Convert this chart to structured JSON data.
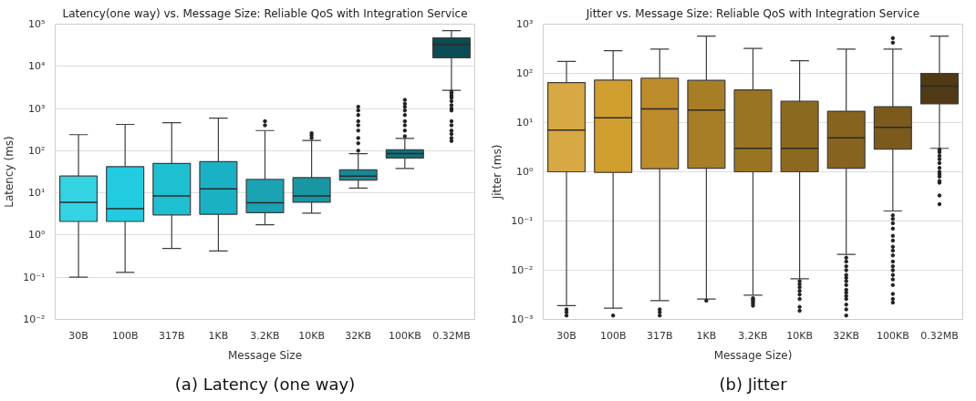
{
  "chart_data": [
    {
      "type": "box",
      "title": "Latency(one way) vs. Message Size: Reliable QoS with Integration Service",
      "xlabel": "Message Size",
      "ylabel": "Latency (ms)",
      "categories": [
        "30B",
        "100B",
        "317B",
        "1KB",
        "3.2KB",
        "10KB",
        "32KB",
        "100KB",
        "0.32MB"
      ],
      "colors": [
        "#33d3e3",
        "#22cbdf",
        "#1dbfd0",
        "#1bb1c4",
        "#1ba2b3",
        "#1897a3",
        "#158a97",
        "#107178",
        "#0c4c55"
      ],
      "boxes": [
        {
          "low": 0.1,
          "q1": 2.1,
          "median": 6,
          "q3": 25,
          "high": 240
        },
        {
          "low": 0.13,
          "q1": 2.1,
          "median": 4.2,
          "q3": 42,
          "high": 420
        },
        {
          "low": 0.48,
          "q1": 3.0,
          "median": 8.5,
          "q3": 50,
          "high": 460
        },
        {
          "low": 0.42,
          "q1": 3.1,
          "median": 12.5,
          "q3": 55,
          "high": 590
        },
        {
          "low": 1.75,
          "q1": 3.4,
          "median": 5.8,
          "q3": 21,
          "high": 300,
          "outliers": [
            400,
            500
          ]
        },
        {
          "low": 3.3,
          "q1": 6.0,
          "median": 8.5,
          "q3": 23,
          "high": 175,
          "outliers": [
            200,
            230,
            260
          ]
        },
        {
          "low": 13,
          "q1": 20,
          "median": 25,
          "q3": 35,
          "high": 85,
          "outliers": [
            100,
            150,
            200,
            300,
            400,
            500,
            700,
            900,
            1100
          ]
        },
        {
          "low": 38,
          "q1": 67,
          "median": 85,
          "q3": 105,
          "high": 195,
          "outliers": [
            220,
            300,
            400,
            500,
            700,
            900,
            1100,
            1300,
            1600
          ]
        },
        {
          "low": 2700,
          "q1": 16000,
          "median": 33000,
          "q3": 47000,
          "high": 70000,
          "outliers": [
            170,
            200,
            250,
            300,
            400,
            500,
            900,
            1000,
            1200,
            1500,
            1800,
            2000,
            2300,
            2500
          ]
        }
      ],
      "log": "y",
      "grid": "y",
      "ylim": [
        0.01,
        100000
      ],
      "yticks": [
        {
          "value": 0.01,
          "label": "10⁻²"
        },
        {
          "value": 0.1,
          "label": "10⁻¹"
        },
        {
          "value": 1,
          "label": "10⁰"
        },
        {
          "value": 10,
          "label": "10¹"
        },
        {
          "value": 100,
          "label": "10²"
        },
        {
          "value": 1000,
          "label": "10³"
        },
        {
          "value": 10000,
          "label": "10⁴"
        },
        {
          "value": 100000,
          "label": "10⁵"
        }
      ],
      "annotations": [
        "(a) Latency (one way)"
      ]
    },
    {
      "type": "box",
      "title": "Jitter vs. Message Size: Reliable QoS with Integration Service",
      "xlabel": "Message Size)",
      "ylabel": "Jitter (ms)",
      "categories": [
        "30B",
        "100B",
        "317B",
        "1KB",
        "3.2KB",
        "10KB",
        "32KB",
        "100KB",
        "0.32MB"
      ],
      "colors": [
        "#d8a844",
        "#d09e2f",
        "#bd8c2b",
        "#a77e26",
        "#997423",
        "#8c6920",
        "#87631f",
        "#7b5a1c",
        "#4f3a15"
      ],
      "boxes": [
        {
          "low": 0.0019,
          "q1": 1.0,
          "median": 7,
          "q3": 65,
          "high": 175,
          "outliers": [
            0.0012,
            0.0014,
            0.0016
          ]
        },
        {
          "low": 0.0017,
          "q1": 0.97,
          "median": 12.5,
          "q3": 73,
          "high": 290,
          "outliers": [
            0.0012
          ]
        },
        {
          "low": 0.0024,
          "q1": 1.15,
          "median": 19,
          "q3": 80,
          "high": 310,
          "outliers": [
            0.0012,
            0.0014,
            0.0016
          ]
        },
        {
          "low": 0.0026,
          "q1": 1.18,
          "median": 18,
          "q3": 72,
          "high": 570,
          "outliers": [
            0.0024
          ]
        },
        {
          "low": 0.0031,
          "q1": 1.0,
          "median": 3.0,
          "q3": 46,
          "high": 320,
          "outliers": [
            0.0019,
            0.0021,
            0.0023,
            0.0025,
            0.0027
          ]
        },
        {
          "low": 0.0067,
          "q1": 1.0,
          "median": 3.0,
          "q3": 27,
          "high": 180,
          "outliers": [
            0.0015,
            0.0018,
            0.0026,
            0.0032,
            0.0038,
            0.0045,
            0.0052,
            0.006
          ]
        },
        {
          "low": 0.021,
          "q1": 1.18,
          "median": 4.9,
          "q3": 17,
          "high": 310,
          "outliers": [
            0.0012,
            0.0016,
            0.002,
            0.0026,
            0.003,
            0.0035,
            0.004,
            0.005,
            0.006,
            0.007,
            0.008,
            0.01,
            0.012,
            0.015,
            0.018
          ]
        },
        {
          "low": 0.16,
          "q1": 2.9,
          "median": 8,
          "q3": 21,
          "high": 310,
          "outliers": [
            0.0022,
            0.0026,
            0.0033,
            0.005,
            0.0065,
            0.008,
            0.01,
            0.012,
            0.015,
            0.02,
            0.025,
            0.03,
            0.04,
            0.05,
            0.07,
            0.09,
            0.11,
            0.13,
            420,
            520
          ]
        },
        {
          "low": 3.0,
          "q1": 24,
          "median": 55,
          "q3": 100,
          "high": 570,
          "outliers": [
            0.22,
            0.33,
            0.6,
            0.65,
            0.8,
            0.9,
            1.0,
            1.2,
            1.5,
            1.8,
            2.1,
            2.5,
            2.8
          ]
        }
      ],
      "log": "y",
      "grid": "y",
      "ylim": [
        0.001,
        1000
      ],
      "yticks": [
        {
          "value": 0.001,
          "label": "10⁻³"
        },
        {
          "value": 0.01,
          "label": "10⁻²"
        },
        {
          "value": 0.1,
          "label": "10⁻¹"
        },
        {
          "value": 1,
          "label": "10⁰"
        },
        {
          "value": 10,
          "label": "10¹"
        },
        {
          "value": 100,
          "label": "10²"
        },
        {
          "value": 1000,
          "label": "10³"
        }
      ],
      "annotations": [
        "(b) Jitter"
      ]
    }
  ]
}
